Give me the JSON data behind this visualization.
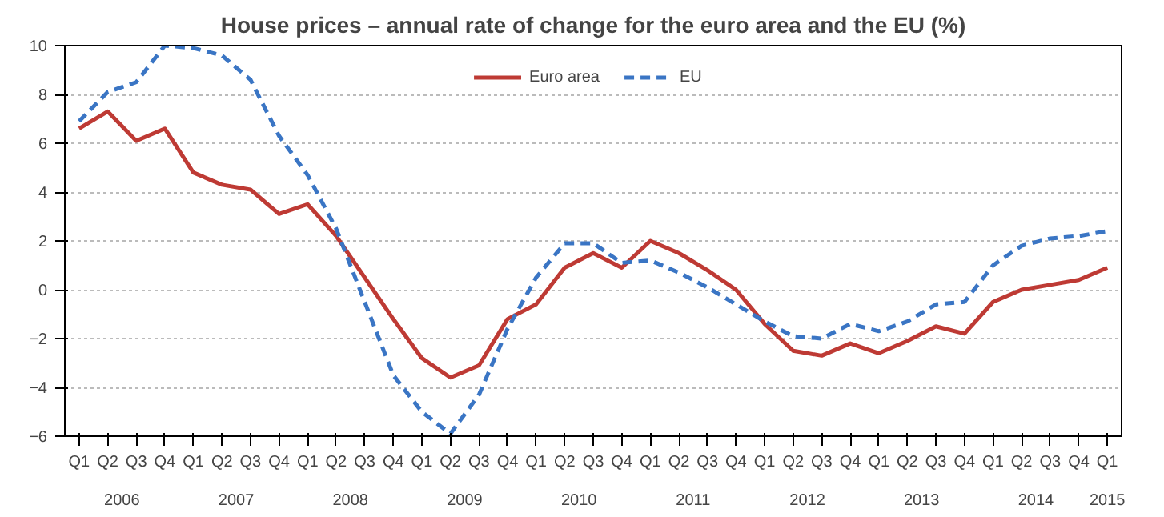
{
  "chart_data": {
    "type": "line",
    "title": "House prices – annual rate of change for the euro area and the EU (%)",
    "categories": [
      "Q1",
      "Q2",
      "Q3",
      "Q4",
      "Q1",
      "Q2",
      "Q3",
      "Q4",
      "Q1",
      "Q2",
      "Q3",
      "Q4",
      "Q1",
      "Q2",
      "Q3",
      "Q4",
      "Q1",
      "Q2",
      "Q3",
      "Q4",
      "Q1",
      "Q2",
      "Q3",
      "Q4",
      "Q1",
      "Q2",
      "Q3",
      "Q4",
      "Q1",
      "Q2",
      "Q3",
      "Q4",
      "Q1",
      "Q2",
      "Q3",
      "Q4",
      "Q1"
    ],
    "annotations": [
      "2006",
      "2007",
      "2008",
      "2009",
      "2010",
      "2011",
      "2012",
      "2013",
      "2014",
      "2015"
    ],
    "series": [
      {
        "name": "Euro area",
        "color": "#be3a34",
        "line_style": "solid",
        "values": [
          6.6,
          7.3,
          6.1,
          6.6,
          4.8,
          4.3,
          4.1,
          3.1,
          3.5,
          2.2,
          0.5,
          -1.2,
          -2.8,
          -3.6,
          -3.1,
          -1.2,
          -0.6,
          0.9,
          1.5,
          0.9,
          2.0,
          1.5,
          0.8,
          0.0,
          -1.4,
          -2.5,
          -2.7,
          -2.2,
          -2.6,
          -2.1,
          -1.5,
          -1.8,
          -0.5,
          0.0,
          0.2,
          0.4,
          0.9
        ]
      },
      {
        "name": "EU",
        "color": "#3a75c4",
        "line_style": "dashed",
        "values": [
          6.9,
          8.1,
          8.5,
          10.0,
          9.9,
          9.6,
          8.6,
          6.3,
          4.7,
          2.5,
          -0.5,
          -3.5,
          -5.0,
          -5.9,
          -4.3,
          -1.6,
          0.5,
          1.9,
          1.9,
          1.1,
          1.2,
          0.7,
          0.1,
          -0.6,
          -1.3,
          -1.9,
          -2.0,
          -1.4,
          -1.7,
          -1.3,
          -0.6,
          -0.5,
          1.0,
          1.8,
          2.1,
          2.2,
          2.4
        ]
      }
    ],
    "ylim": [
      -6,
      10
    ],
    "yticks": [
      -6,
      -4,
      -2,
      0,
      2,
      4,
      6,
      8,
      10
    ],
    "grid": "y",
    "legend": "top",
    "marker": "none"
  }
}
